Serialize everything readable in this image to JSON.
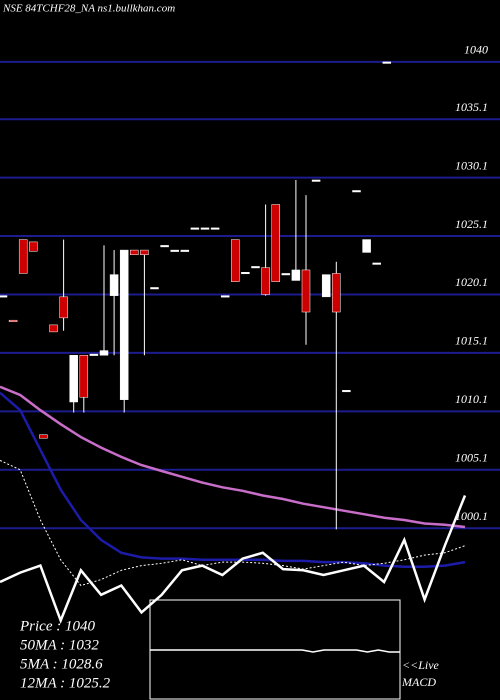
{
  "chart_data": {
    "type": "candlestick",
    "title": "NSE 84TCHF28_NA ns1.bullkhan.com",
    "ylim": [
      985.4,
      1045.3
    ],
    "yticks": [
      1040,
      1035.1,
      1030.1,
      1025.1,
      1020.1,
      1015.1,
      1010.1,
      1005.1,
      1000.1
    ],
    "grid": true,
    "up_color": "#ffffff",
    "down_color": "#cc0000",
    "grid_color": "#1c1c8e",
    "candles": [
      {
        "open": 1020,
        "high": 1020,
        "low": 1020,
        "close": 1020
      },
      {
        "open": 1017.9,
        "high": 1017.9,
        "low": 1017.9,
        "close": 1017.8
      },
      {
        "open": 1024.8,
        "high": 1024.8,
        "low": 1021.9,
        "close": 1021.9
      },
      {
        "open": 1024.6,
        "high": 1024.6,
        "low": 1023.8,
        "close": 1023.8
      },
      {
        "open": 1008.1,
        "high": 1008.1,
        "low": 1007.8,
        "close": 1007.8
      },
      {
        "open": 1017.5,
        "high": 1017.5,
        "low": 1016.9,
        "close": 1016.9
      },
      {
        "open": 1019.9,
        "high": 1024.8,
        "low": 1017,
        "close": 1018.1
      },
      {
        "open": 1010.9,
        "high": 1014.9,
        "low": 1010,
        "close": 1014.9
      },
      {
        "open": 1014.9,
        "high": 1014.9,
        "low": 1010,
        "close": 1011.3
      },
      {
        "open": 1015,
        "high": 1015,
        "low": 1015,
        "close": 1015
      },
      {
        "open": 1014.9,
        "high": 1024.3,
        "low": 1014.9,
        "close": 1015.3
      },
      {
        "open": 1020,
        "high": 1023.9,
        "low": 1014.9,
        "close": 1021.8
      },
      {
        "open": 1011.1,
        "high": 1023.9,
        "low": 1010,
        "close": 1023.9
      },
      {
        "open": 1023.9,
        "high": 1023.9,
        "low": 1023.5,
        "close": 1023.5
      },
      {
        "open": 1023.9,
        "high": 1023.9,
        "low": 1014.9,
        "close": 1023.5
      },
      {
        "open": 1020.7,
        "high": 1020.7,
        "low": 1020.7,
        "close": 1020.7
      },
      {
        "open": 1024.3,
        "high": 1024.3,
        "low": 1024.3,
        "close": 1024.3
      },
      {
        "open": 1023.9,
        "high": 1023.9,
        "low": 1023.9,
        "close": 1023.9
      },
      {
        "open": 1023.9,
        "high": 1023.9,
        "low": 1023.9,
        "close": 1023.9
      },
      {
        "open": 1025.8,
        "high": 1025.8,
        "low": 1025.8,
        "close": 1025.8
      },
      {
        "open": 1025.8,
        "high": 1025.8,
        "low": 1025.8,
        "close": 1025.8
      },
      {
        "open": 1025.8,
        "high": 1025.8,
        "low": 1025.8,
        "close": 1025.8
      },
      {
        "open": 1020,
        "high": 1020,
        "low": 1020,
        "close": 1020
      },
      {
        "open": 1024.8,
        "high": 1024.8,
        "low": 1021.2,
        "close": 1021.2
      },
      {
        "open": 1022,
        "high": 1022,
        "low": 1022,
        "close": 1022
      },
      {
        "open": 1022.5,
        "high": 1022.5,
        "low": 1022.5,
        "close": 1022.5
      },
      {
        "open": 1022.4,
        "high": 1027.8,
        "low": 1020,
        "close": 1020.1
      },
      {
        "open": 1027.8,
        "high": 1027.8,
        "low": 1021.2,
        "close": 1021.2
      },
      {
        "open": 1021.9,
        "high": 1021.9,
        "low": 1021.9,
        "close": 1021.9
      },
      {
        "open": 1021.3,
        "high": 1029.9,
        "low": 1021.3,
        "close": 1022.2
      },
      {
        "open": 1022.2,
        "high": 1028.6,
        "low": 1015.8,
        "close": 1018.6
      },
      {
        "open": 1029.9,
        "high": 1029.9,
        "low": 1029.9,
        "close": 1029.9
      },
      {
        "open": 1019.9,
        "high": 1021.8,
        "low": 1019.9,
        "close": 1021.8
      },
      {
        "open": 1021.9,
        "high": 1022.9,
        "low": 1000,
        "close": 1018.6
      },
      {
        "open": 1011.9,
        "high": 1011.9,
        "low": 1011.9,
        "close": 1011.9
      },
      {
        "open": 1029,
        "high": 1029,
        "low": 1029,
        "close": 1029
      },
      {
        "open": 1023.7,
        "high": 1024.8,
        "low": 1023.7,
        "close": 1024.8
      },
      {
        "open": 1022.8,
        "high": 1022.8,
        "low": 1022.8,
        "close": 1022.8
      },
      {
        "open": 1040,
        "high": 1040,
        "low": 1040,
        "close": 1040
      }
    ],
    "lines": [
      {
        "color": "#c86ec8",
        "dashed": false,
        "values": [
          1012.2,
          1011.5,
          1010.2,
          1009.0,
          1007.9,
          1007.0,
          1006.2,
          1005.5,
          1005.0,
          1004.5,
          1004.0,
          1003.6,
          1003.3,
          1002.9,
          1002.6,
          1002.2,
          1001.9,
          1001.6,
          1001.3,
          1001.0,
          1000.8,
          1000.5,
          1000.4,
          1000.2
        ]
      },
      {
        "color": "#1c1ca8",
        "dashed": false,
        "values": [
          1011.7,
          1010.2,
          1006.8,
          1003.4,
          1000.8,
          999.1,
          998.0,
          997.6,
          997.5,
          997.5,
          997.4,
          997.4,
          997.4,
          997.4,
          997.3,
          997.3,
          997.2,
          997.2,
          997.1,
          996.9,
          996.8,
          996.8,
          996.9,
          997.2
        ]
      },
      {
        "color": "#ffffff",
        "dashed": true,
        "values": [
          1005.9,
          1005.1,
          1000.8,
          997.4,
          995.2,
          995.7,
          996.5,
          996.9,
          997.1,
          997.4,
          996.9,
          997.2,
          997.2,
          997.1,
          996.9,
          996.6,
          996.9,
          997.2,
          996.9,
          997.1,
          997.4,
          997.8,
          998.0,
          998.6
        ]
      },
      {
        "color": "#ffffff",
        "dashed": false,
        "values": [
          995.5,
          996.3,
          996.9,
          992.2,
          996.5,
          994.4,
          995.2,
          992.9,
          994.4,
          996.5,
          996.9,
          996.1,
          997.5,
          998.0,
          996.6,
          996.5,
          996.1,
          996.5,
          996.9,
          995.5,
          999.1,
          994.0,
          998.6,
          1002.9
        ]
      }
    ],
    "macd": {
      "ylim": [
        -3,
        2
      ],
      "values": [
        0,
        0,
        0,
        0,
        0,
        0,
        0,
        0,
        0,
        0,
        0,
        0,
        0,
        0,
        0,
        -1,
        0,
        0,
        0,
        0,
        -1,
        0,
        -1,
        -1
      ]
    },
    "macd_label": [
      "<<Live",
      "MACD"
    ],
    "stats": [
      "Price : 1040",
      "50MA : 1032",
      "5MA : 1028.6",
      "12MA : 1025.2"
    ]
  }
}
